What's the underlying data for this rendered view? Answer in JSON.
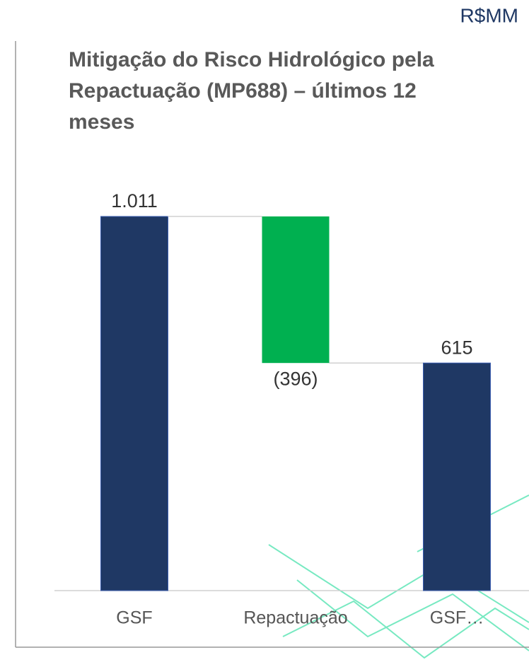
{
  "chart_data": {
    "type": "waterfall",
    "unit": "R$MM",
    "title": [
      "Mitigação do Risco Hidrológico pela",
      "Repactuação (MP688) – últimos 12",
      "meses"
    ],
    "categories": [
      "GSF",
      "Repactuação",
      "GSF…"
    ],
    "values": [
      1011,
      -396,
      615
    ],
    "value_labels": [
      "1.011",
      "(396)",
      "615"
    ],
    "is_total": [
      false,
      false,
      true
    ],
    "colors": [
      "#1f3864",
      "#00b050",
      "#1f3864"
    ]
  }
}
